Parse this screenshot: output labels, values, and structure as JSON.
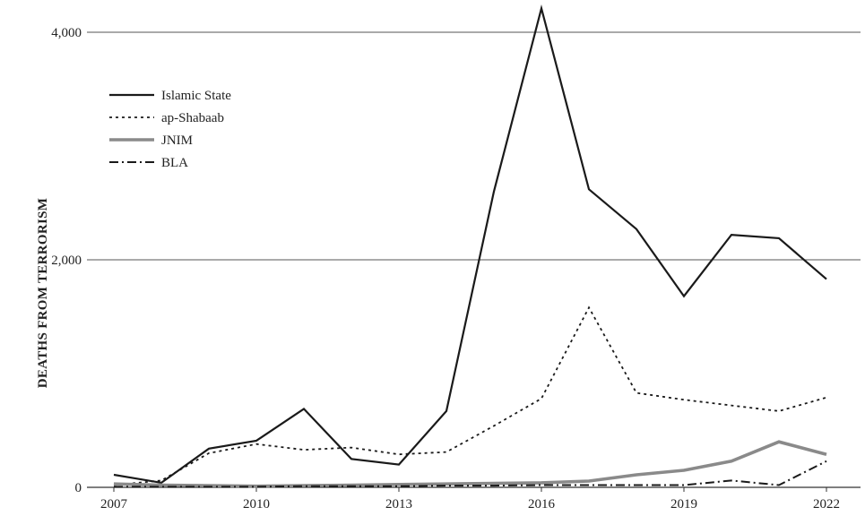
{
  "chart_data": {
    "type": "line",
    "title": "",
    "xlabel": "",
    "ylabel": "DEATHS FROM TERRORISM",
    "x": [
      2007,
      2008,
      2009,
      2010,
      2011,
      2012,
      2013,
      2014,
      2015,
      2016,
      2017,
      2018,
      2019,
      2020,
      2021,
      2022
    ],
    "x_ticks": [
      "2007",
      "2010",
      "2013",
      "2016",
      "2019",
      "2022"
    ],
    "y_ticks": [
      "0",
      "2,000",
      "4,000"
    ],
    "xlim": [
      2007,
      2022.3
    ],
    "ylim": [
      0,
      4250
    ],
    "grid": "horizontal",
    "legend_position": "top-left",
    "series": [
      {
        "name": "Islamic State",
        "style": "solid",
        "color": "#1a1a1a",
        "values": [
          110,
          40,
          340,
          410,
          690,
          250,
          200,
          670,
          2600,
          4210,
          2620,
          2270,
          1680,
          2220,
          2190,
          1830
        ]
      },
      {
        "name": "ap-Shabaab",
        "style": "dotted",
        "color": "#1a1a1a",
        "values": [
          20,
          60,
          300,
          380,
          330,
          350,
          290,
          310,
          540,
          780,
          1580,
          830,
          770,
          720,
          670,
          790
        ]
      },
      {
        "name": "JNIM",
        "style": "thick",
        "color": "#8a8a8a",
        "values": [
          30,
          20,
          15,
          10,
          15,
          20,
          25,
          30,
          35,
          40,
          55,
          110,
          150,
          230,
          400,
          290
        ]
      },
      {
        "name": "BLA",
        "style": "dashdot",
        "color": "#1a1a1a",
        "values": [
          5,
          5,
          5,
          5,
          10,
          10,
          10,
          15,
          15,
          20,
          20,
          20,
          20,
          60,
          20,
          230
        ]
      }
    ]
  }
}
